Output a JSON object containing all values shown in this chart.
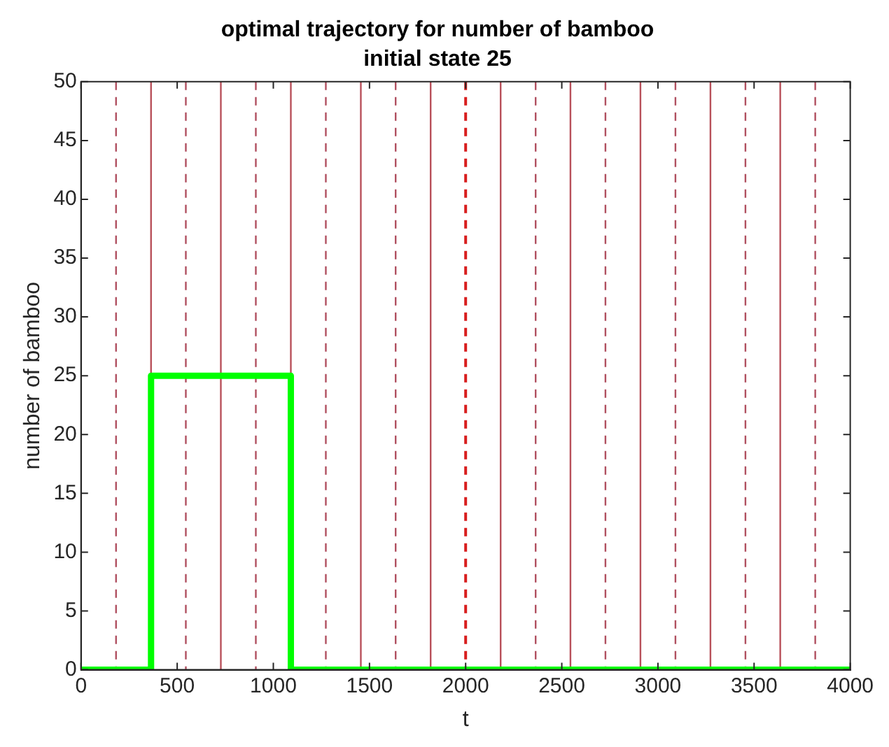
{
  "chart_data": {
    "type": "step",
    "title": "optimal trajectory for number of bamboo",
    "subtitle": "initial state 25",
    "xlabel": "t",
    "ylabel": "number of bamboo",
    "x": [
      0,
      364,
      1091,
      4000
    ],
    "series": [
      {
        "color": "#00ff00",
        "values": [
          0,
          25,
          0,
          0
        ]
      }
    ],
    "xlim": [
      0,
      4000
    ],
    "xticks": [
      0,
      500,
      1000,
      1500,
      2000,
      2500,
      3000,
      3500,
      4000
    ],
    "ylim": [
      0,
      50
    ],
    "yticks": [
      0,
      5,
      10,
      15,
      20,
      25,
      30,
      35,
      40,
      45,
      50
    ],
    "grid": false,
    "legend": false,
    "ref_lines": [
      {
        "axis": "x",
        "value": 364,
        "color": "#b8505a",
        "line_style": "solid"
      },
      {
        "axis": "x",
        "value": 727,
        "color": "#b8505a",
        "line_style": "solid"
      },
      {
        "axis": "x",
        "value": 1091,
        "color": "#b8505a",
        "line_style": "solid"
      },
      {
        "axis": "x",
        "value": 1455,
        "color": "#b8505a",
        "line_style": "solid"
      },
      {
        "axis": "x",
        "value": 1818,
        "color": "#b8505a",
        "line_style": "solid"
      },
      {
        "axis": "x",
        "value": 2182,
        "color": "#b8505a",
        "line_style": "solid"
      },
      {
        "axis": "x",
        "value": 2545,
        "color": "#b8505a",
        "line_style": "solid"
      },
      {
        "axis": "x",
        "value": 2909,
        "color": "#b8505a",
        "line_style": "solid"
      },
      {
        "axis": "x",
        "value": 3273,
        "color": "#b8505a",
        "line_style": "solid"
      },
      {
        "axis": "x",
        "value": 3636,
        "color": "#b8505a",
        "line_style": "solid"
      },
      {
        "axis": "x",
        "value": 182,
        "color": "#b05060",
        "line_style": "dashed"
      },
      {
        "axis": "x",
        "value": 545,
        "color": "#b05060",
        "line_style": "dashed"
      },
      {
        "axis": "x",
        "value": 909,
        "color": "#b05060",
        "line_style": "dashed"
      },
      {
        "axis": "x",
        "value": 1273,
        "color": "#b05060",
        "line_style": "dashed"
      },
      {
        "axis": "x",
        "value": 1636,
        "color": "#b05060",
        "line_style": "dashed"
      },
      {
        "axis": "x",
        "value": 2000,
        "color": "#d81e1e",
        "line_style": "dashed"
      },
      {
        "axis": "x",
        "value": 2364,
        "color": "#b05060",
        "line_style": "dashed"
      },
      {
        "axis": "x",
        "value": 2727,
        "color": "#b05060",
        "line_style": "dashed"
      },
      {
        "axis": "x",
        "value": 3091,
        "color": "#b05060",
        "line_style": "dashed"
      },
      {
        "axis": "x",
        "value": 3455,
        "color": "#b05060",
        "line_style": "dashed"
      },
      {
        "axis": "x",
        "value": 3818,
        "color": "#b05060",
        "line_style": "dashed"
      }
    ]
  }
}
